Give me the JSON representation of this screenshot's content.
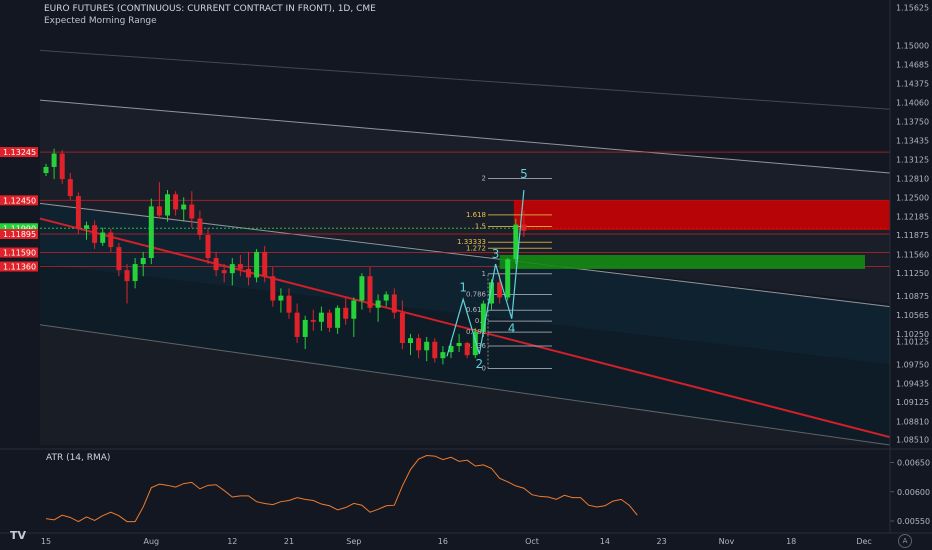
{
  "header": {
    "symbol": "EURO FUTURES (CONTINUOUS: CURRENT CONTRACT IN FRONT), 1D, CME",
    "indicator": "Expected Morning Range"
  },
  "atr": {
    "label": "ATR (14, RMA)"
  },
  "colors": {
    "background": "#131722",
    "up": "#26d13a",
    "down": "#e0232a",
    "zone_red": "#d40000",
    "zone_green": "#138a13",
    "wave": "#5fd3d9",
    "atr": "#f07b2c"
  },
  "price_axis": [
    "1.15625",
    "1.15000",
    "1.14685",
    "1.14375",
    "1.14060",
    "1.13750",
    "1.13435",
    "1.13125",
    "1.12810",
    "1.12500",
    "1.12185",
    "1.11875",
    "1.11560",
    "1.11250",
    "1.10875",
    "1.10565",
    "1.10250",
    "1.10125",
    "1.09750",
    "1.09435",
    "1.09125",
    "1.08810",
    "1.08510"
  ],
  "price_tags": [
    {
      "price": 1.13245,
      "label": "1.13245",
      "color": "#e0232a"
    },
    {
      "price": 1.1245,
      "label": "1.12450",
      "color": "#e0232a"
    },
    {
      "price": 1.1199,
      "label": "1.11990",
      "color": "#26d13a"
    },
    {
      "price": 1.11895,
      "label": "1.11895",
      "color": "#e0232a"
    },
    {
      "price": 1.1159,
      "label": "1.11590",
      "color": "#e0232a"
    },
    {
      "price": 1.1136,
      "label": "1.11360",
      "color": "#e0232a"
    }
  ],
  "time_axis": [
    {
      "label": "15",
      "idx": 0
    },
    {
      "label": "Aug",
      "idx": 13
    },
    {
      "label": "12",
      "idx": 23
    },
    {
      "label": "21",
      "idx": 30
    },
    {
      "label": "Sep",
      "idx": 38
    },
    {
      "label": "16",
      "idx": 49
    },
    {
      "label": "Oct",
      "idx": 60
    },
    {
      "label": "14",
      "idx": 69
    },
    {
      "label": "23",
      "idx": 76
    },
    {
      "label": "Nov",
      "idx": 84
    },
    {
      "label": "18",
      "idx": 92
    },
    {
      "label": "Dec",
      "idx": 101
    }
  ],
  "atr_axis": [
    "0.00650",
    "0.00600",
    "0.00550"
  ],
  "atr_values": [
    0.00554,
    0.00552,
    0.0056,
    0.00556,
    0.00549,
    0.00557,
    0.00551,
    0.00559,
    0.00565,
    0.00559,
    0.00549,
    0.00549,
    0.00574,
    0.00607,
    0.00613,
    0.00611,
    0.00608,
    0.00614,
    0.00616,
    0.00605,
    0.00611,
    0.00612,
    0.00602,
    0.00591,
    0.00593,
    0.00593,
    0.00583,
    0.0058,
    0.00578,
    0.00583,
    0.00585,
    0.0059,
    0.00587,
    0.00585,
    0.00579,
    0.00576,
    0.00569,
    0.00573,
    0.0058,
    0.00577,
    0.00565,
    0.0057,
    0.00576,
    0.00577,
    0.0061,
    0.00638,
    0.00656,
    0.00662,
    0.00661,
    0.00655,
    0.00659,
    0.00652,
    0.00654,
    0.00644,
    0.00646,
    0.0064,
    0.00623,
    0.00617,
    0.0061,
    0.00606,
    0.00595,
    0.00592,
    0.00591,
    0.00587,
    0.00594,
    0.0059,
    0.0059,
    0.00577,
    0.00574,
    0.00576,
    0.00584,
    0.00587,
    0.00577,
    0.0056
  ],
  "candles": [
    [
      1.129,
      1.1305,
      1.1285,
      1.13
    ],
    [
      1.13,
      1.133,
      1.128,
      1.1322
    ],
    [
      1.1322,
      1.1328,
      1.1272,
      1.128
    ],
    [
      1.128,
      1.129,
      1.1245,
      1.1252
    ],
    [
      1.1252,
      1.1258,
      1.119,
      1.1198
    ],
    [
      1.1198,
      1.121,
      1.118,
      1.1204
    ],
    [
      1.1204,
      1.1212,
      1.1165,
      1.1175
    ],
    [
      1.1175,
      1.12,
      1.117,
      1.1192
    ],
    [
      1.1192,
      1.1198,
      1.116,
      1.1168
    ],
    [
      1.1168,
      1.1175,
      1.112,
      1.113
    ],
    [
      1.113,
      1.114,
      1.1075,
      1.1112
    ],
    [
      1.1112,
      1.115,
      1.11,
      1.114
    ],
    [
      1.114,
      1.116,
      1.112,
      1.115
    ],
    [
      1.115,
      1.1248,
      1.114,
      1.1235
    ],
    [
      1.1235,
      1.1275,
      1.1215,
      1.122
    ],
    [
      1.122,
      1.1262,
      1.121,
      1.1255
    ],
    [
      1.1255,
      1.126,
      1.122,
      1.123
    ],
    [
      1.123,
      1.125,
      1.121,
      1.1238
    ],
    [
      1.1238,
      1.126,
      1.12,
      1.1215
    ],
    [
      1.1215,
      1.1228,
      1.118,
      1.1188
    ],
    [
      1.1188,
      1.12,
      1.114,
      1.115
    ],
    [
      1.115,
      1.116,
      1.112,
      1.113
    ],
    [
      1.113,
      1.114,
      1.111,
      1.1125
    ],
    [
      1.1125,
      1.115,
      1.1105,
      1.114
    ],
    [
      1.114,
      1.1155,
      1.112,
      1.1132
    ],
    [
      1.1132,
      1.116,
      1.1105,
      1.1118
    ],
    [
      1.1118,
      1.1165,
      1.111,
      1.116
    ],
    [
      1.116,
      1.117,
      1.111,
      1.112
    ],
    [
      1.112,
      1.1135,
      1.107,
      1.108
    ],
    [
      1.108,
      1.11,
      1.106,
      1.1088
    ],
    [
      1.1088,
      1.11,
      1.105,
      1.106
    ],
    [
      1.106,
      1.1075,
      1.101,
      1.102
    ],
    [
      1.102,
      1.1055,
      1.1,
      1.1048
    ],
    [
      1.1048,
      1.1065,
      1.103,
      1.1045
    ],
    [
      1.1045,
      1.107,
      1.103,
      1.106
    ],
    [
      1.106,
      1.1065,
      1.1028,
      1.1035
    ],
    [
      1.1035,
      1.1072,
      1.1025,
      1.1068
    ],
    [
      1.1068,
      1.1085,
      1.104,
      1.105
    ],
    [
      1.105,
      1.1085,
      1.102,
      1.108
    ],
    [
      1.108,
      1.1125,
      1.1065,
      1.112
    ],
    [
      1.112,
      1.1135,
      1.106,
      1.1068
    ],
    [
      1.1068,
      1.109,
      1.1045,
      1.108
    ],
    [
      1.108,
      1.1095,
      1.107,
      1.109
    ],
    [
      1.109,
      1.11,
      1.105,
      1.106
    ],
    [
      1.106,
      1.108,
      1.1,
      1.101
    ],
    [
      1.101,
      1.1025,
      1.099,
      1.1018
    ],
    [
      1.1018,
      1.1025,
      1.0985,
      1.0998
    ],
    [
      1.0998,
      1.102,
      1.098,
      1.1012
    ],
    [
      1.1012,
      1.1018,
      1.0978,
      1.0985
    ],
    [
      1.0985,
      1.1005,
      1.0975,
      1.0995
    ],
    [
      1.0995,
      1.1015,
      1.0985,
      1.1005
    ],
    [
      1.1005,
      1.1025,
      1.0995,
      1.101
    ],
    [
      1.101,
      1.1012,
      1.0985,
      1.099
    ],
    [
      1.099,
      1.1035,
      1.0985,
      1.1028
    ],
    [
      1.1028,
      1.108,
      1.102,
      1.1075
    ],
    [
      1.1075,
      1.1115,
      1.1065,
      1.111
    ],
    [
      1.111,
      1.1125,
      1.1075,
      1.1085
    ],
    [
      1.1085,
      1.115,
      1.108,
      1.1148
    ],
    [
      1.1148,
      1.1215,
      1.114,
      1.1205
    ],
    [
      1.1205,
      1.1228,
      1.1185,
      1.1195
    ]
  ],
  "fib_levels": [
    {
      "label": "2",
      "price": 1.1281,
      "color": "#b2b5be"
    },
    {
      "label": "1.618",
      "price": 1.1221,
      "color": "#e8c34a"
    },
    {
      "label": "1.5",
      "price": 1.1202,
      "color": "#e8c34a"
    },
    {
      "label": "1.33333",
      "price": 1.1176,
      "color": "#e8c34a"
    },
    {
      "label": "1.272",
      "price": 1.1166,
      "color": "#e8c34a"
    },
    {
      "label": "1",
      "price": 1.1124,
      "color": "#b2b5be"
    },
    {
      "label": "0.786",
      "price": 1.109,
      "color": "#b2b5be"
    },
    {
      "label": "0.618",
      "price": 1.1064,
      "color": "#b2b5be"
    },
    {
      "label": "0.5",
      "price": 1.1046,
      "color": "#b2b5be"
    },
    {
      "label": "0.382",
      "price": 1.1028,
      "color": "#b2b5be"
    },
    {
      "label": "0.236",
      "price": 1.1005,
      "color": "#b2b5be"
    },
    {
      "label": "0",
      "price": 1.0968,
      "color": "#b2b5be"
    }
  ],
  "waves": [
    {
      "label": "1",
      "price": 1.1082,
      "idx": 51.5
    },
    {
      "label": "2",
      "price": 1.0992,
      "idx": 53.5
    },
    {
      "label": "3",
      "price": 1.114,
      "idx": 55.5
    },
    {
      "label": "4",
      "price": 1.105,
      "idx": 57.5
    },
    {
      "label": "5",
      "price": 1.1262,
      "idx": 59
    }
  ]
}
